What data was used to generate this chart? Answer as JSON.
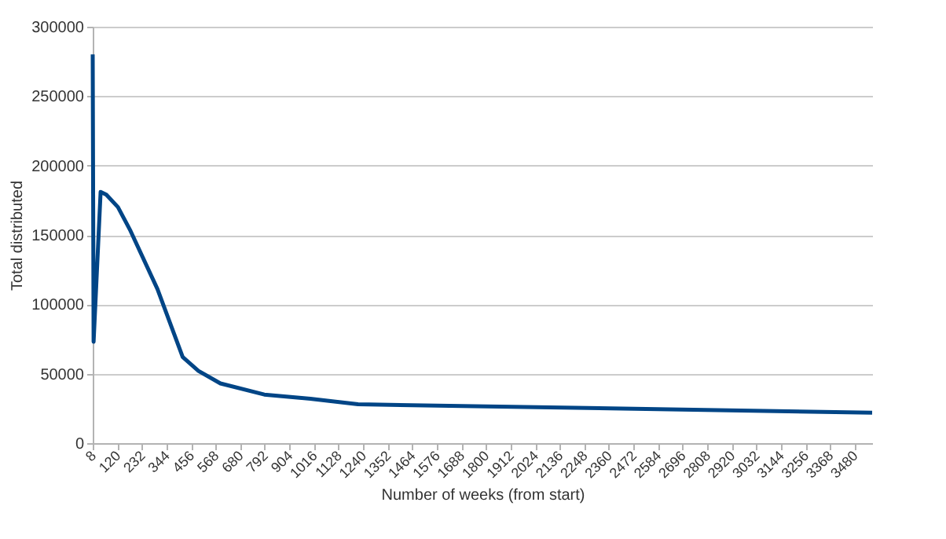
{
  "chart_data": {
    "type": "line",
    "xlabel": "Number of weeks (from start)",
    "ylabel": "Total distributed",
    "x": [
      8,
      12,
      44,
      70,
      123,
      180,
      303,
      418,
      490,
      590,
      790,
      1000,
      1217,
      2368,
      3560
    ],
    "series": [
      {
        "color": "#004586",
        "values": [
          280000,
          73000,
          181000,
          179000,
          170000,
          153000,
          111000,
          62000,
          52000,
          43000,
          35000,
          32000,
          28000,
          25000,
          22000
        ]
      }
    ],
    "xlim": [
      8,
      3560
    ],
    "xticks": [
      8,
      120,
      232,
      344,
      456,
      568,
      680,
      792,
      904,
      1016,
      1128,
      1240,
      1352,
      1464,
      1576,
      1688,
      1800,
      1912,
      2024,
      2136,
      2248,
      2360,
      2472,
      2584,
      2696,
      2808,
      2920,
      3032,
      3144,
      3256,
      3368,
      3480
    ],
    "ylim": [
      0,
      300000
    ],
    "yticks": [
      0,
      50000,
      100000,
      150000,
      200000,
      250000,
      300000
    ],
    "grid": "y",
    "marker": "none",
    "line_style": "solid"
  }
}
